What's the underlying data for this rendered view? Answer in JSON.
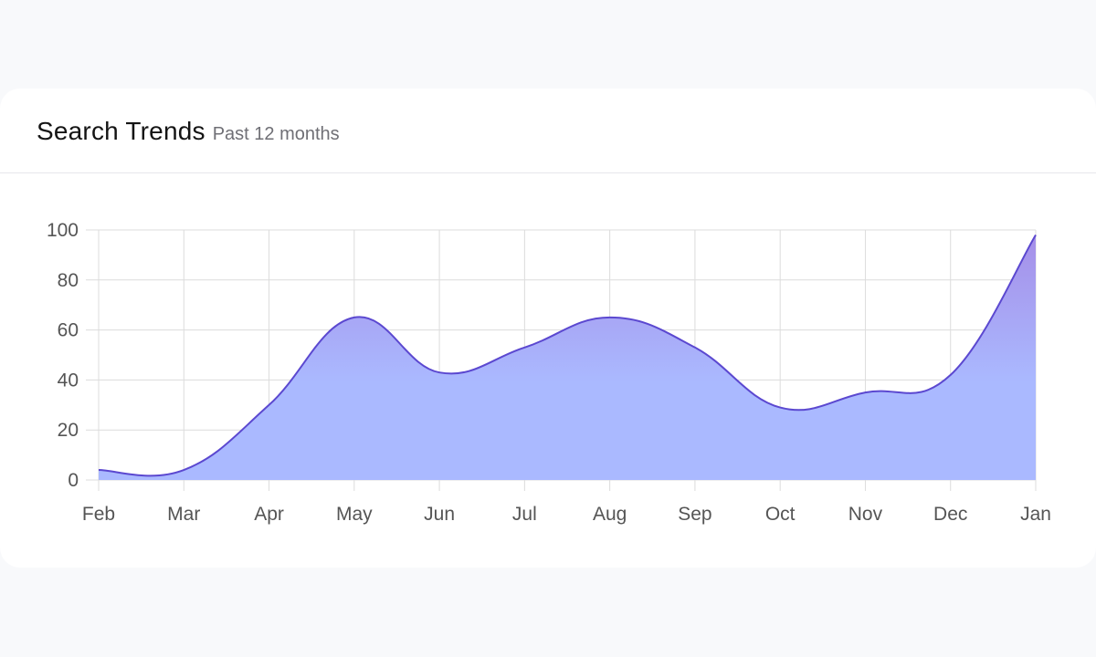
{
  "card": {
    "title": "Search Trends",
    "subtitle": "Past 12 months"
  },
  "colors": {
    "page_background": "#f8f9fb",
    "card_background": "#ffffff",
    "line": "#5b48d0",
    "fill_top": "#a58fe8",
    "fill_bottom": "#aab9ff",
    "grid": "#dcdcdc",
    "tick_text": "#555555"
  },
  "chart_data": {
    "type": "area",
    "title": "",
    "xlabel": "",
    "ylabel": "",
    "categories": [
      "Feb",
      "Mar",
      "Apr",
      "May",
      "Jun",
      "Jul",
      "Aug",
      "Sep",
      "Oct",
      "Nov",
      "Dec",
      "Jan"
    ],
    "series": [
      {
        "values": [
          4,
          4,
          30,
          65,
          43,
          53,
          65,
          53,
          29,
          35,
          42,
          98
        ]
      }
    ],
    "ylim": [
      0,
      100
    ],
    "yticks": [
      0,
      20,
      40,
      60,
      80,
      100
    ],
    "grid": true,
    "smooth": true,
    "legend": "none"
  }
}
